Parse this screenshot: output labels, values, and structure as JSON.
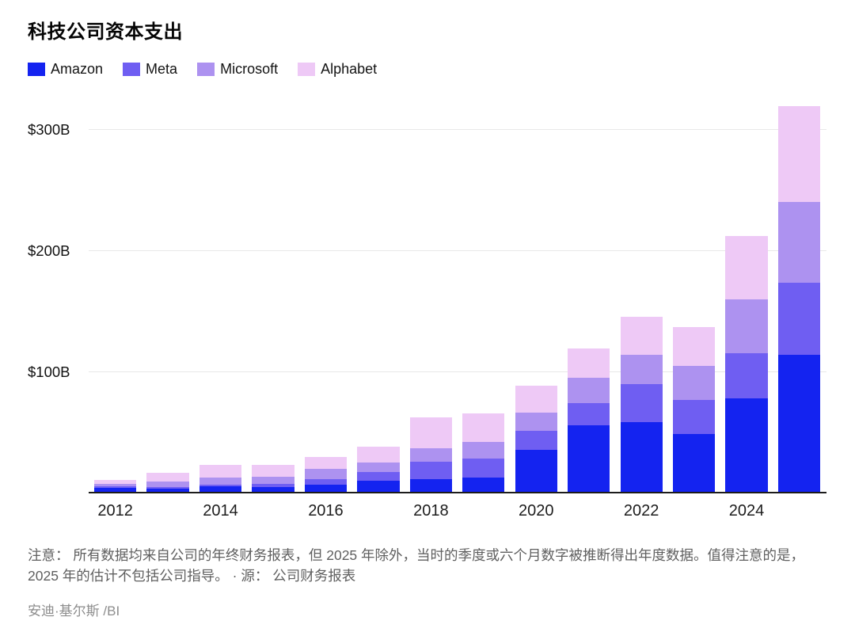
{
  "title": "科技公司资本支出",
  "footnote": "注意： 所有数据均来自公司的年终财务报表，但 2025 年除外，当时的季度或六个月数字被推断得出年度数据。值得注意的是，2025 年的估计不包括公司指导。 · 源： 公司财务报表",
  "credit": "安迪·基尔斯 /BI",
  "chart_data": {
    "type": "bar",
    "stacked": true,
    "title": "科技公司资本支出",
    "unit": "USD billions",
    "categories": [
      2012,
      2013,
      2014,
      2015,
      2016,
      2017,
      2018,
      2019,
      2020,
      2021,
      2022,
      2023,
      2024,
      2025
    ],
    "series": [
      {
        "name": "Amazon",
        "color": "#1423f0",
        "values": [
          3.8,
          3.4,
          4.9,
          4.6,
          6.7,
          10.1,
          11.3,
          12.7,
          35.0,
          55.4,
          58.3,
          48.1,
          77.7,
          113.5
        ]
      },
      {
        "name": "Meta",
        "color": "#6f5ef2",
        "values": [
          1.2,
          1.4,
          1.8,
          2.5,
          4.5,
          6.7,
          13.9,
          15.1,
          15.7,
          18.6,
          31.4,
          28.1,
          37.3,
          59.5
        ]
      },
      {
        "name": "Microsoft",
        "color": "#ad92f0",
        "values": [
          2.3,
          4.3,
          5.5,
          5.9,
          8.3,
          8.1,
          11.6,
          13.9,
          15.4,
          20.6,
          23.9,
          28.1,
          44.5,
          67.0
        ]
      },
      {
        "name": "Alphabet",
        "color": "#eec9f6",
        "values": [
          3.3,
          7.4,
          11.0,
          9.9,
          10.2,
          13.2,
          25.1,
          23.5,
          22.3,
          24.6,
          31.5,
          32.3,
          52.5,
          79.0
        ]
      }
    ],
    "y_ticks": [
      {
        "value": 100,
        "label": "$100B"
      },
      {
        "value": 200,
        "label": "$200B"
      },
      {
        "value": 300,
        "label": "$300B"
      }
    ],
    "x_ticks": [
      {
        "index": 0,
        "label": "2012"
      },
      {
        "index": 2,
        "label": "2014"
      },
      {
        "index": 4,
        "label": "2016"
      },
      {
        "index": 6,
        "label": "2018"
      },
      {
        "index": 8,
        "label": "2020"
      },
      {
        "index": 10,
        "label": "2022"
      },
      {
        "index": 12,
        "label": "2024"
      }
    ],
    "ylim": [
      0,
      330
    ],
    "grid": "horizontal",
    "legend_position": "top-left"
  }
}
